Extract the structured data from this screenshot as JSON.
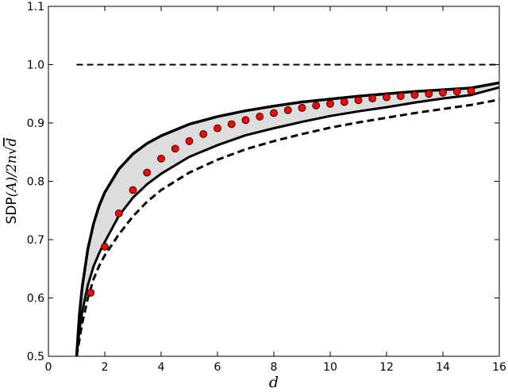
{
  "chart_data": {
    "type": "line",
    "title": "",
    "xlabel": "d",
    "ylabel": {
      "prefix": "SDP",
      "arg": "(A)",
      "mid": "/2n",
      "sqrt_arg": "d"
    },
    "xlim": [
      0,
      16
    ],
    "ylim": [
      0.5,
      1.1
    ],
    "xticks": [
      0,
      2,
      4,
      6,
      8,
      10,
      12,
      14,
      16
    ],
    "yticks": [
      0.5,
      0.6,
      0.7,
      0.8,
      0.9,
      1.0,
      1.1
    ],
    "xtick_labels": [
      "0",
      "2",
      "4",
      "6",
      "8",
      "10",
      "12",
      "14",
      "16"
    ],
    "ytick_labels": [
      "0.5",
      "0.6",
      "0.7",
      "0.8",
      "0.9",
      "1.0",
      "1.1"
    ],
    "grid": false,
    "legend": "none",
    "colors": {
      "band_fill": "#dddddd",
      "points": "#ff0000",
      "lines": "#000000"
    },
    "series": [
      {
        "style": "dashed",
        "x": [
          1,
          16
        ],
        "y": [
          1.0,
          1.0
        ]
      },
      {
        "style": "solid-thick",
        "x": [
          1.0,
          1.1,
          1.2,
          1.4,
          1.6,
          1.8,
          2.0,
          2.5,
          3.0,
          3.5,
          4.0,
          5.0,
          6.0,
          7.0,
          8.0,
          9.0,
          10.0,
          11.0,
          12.0,
          13.0,
          14.0,
          15.0,
          16.0
        ],
        "y": [
          0.5,
          0.572,
          0.619,
          0.684,
          0.727,
          0.758,
          0.781,
          0.821,
          0.847,
          0.865,
          0.878,
          0.898,
          0.911,
          0.921,
          0.929,
          0.936,
          0.941,
          0.946,
          0.95,
          0.954,
          0.957,
          0.96,
          0.969
        ]
      },
      {
        "style": "solid",
        "x": [
          1.0,
          1.1,
          1.2,
          1.4,
          1.6,
          1.8,
          2.0,
          2.5,
          3.0,
          3.5,
          4.0,
          5.0,
          6.0,
          7.0,
          8.0,
          9.0,
          10.0,
          11.0,
          12.0,
          13.0,
          14.0,
          15.0,
          16.0
        ],
        "y": [
          0.5,
          0.545,
          0.577,
          0.622,
          0.654,
          0.677,
          0.696,
          0.741,
          0.772,
          0.795,
          0.813,
          0.842,
          0.862,
          0.879,
          0.891,
          0.902,
          0.912,
          0.92,
          0.927,
          0.935,
          0.942,
          0.948,
          0.961
        ]
      },
      {
        "style": "dashed-thick",
        "x": [
          1.0,
          1.2,
          1.4,
          1.6,
          1.8,
          2.0,
          2.5,
          3.0,
          3.5,
          4.0,
          5.0,
          6.0,
          7.0,
          8.0,
          9.0,
          10.0,
          11.0,
          12.0,
          13.0,
          14.0,
          15.0,
          16.0
        ],
        "y": [
          0.5,
          0.557,
          0.6,
          0.632,
          0.655,
          0.673,
          0.709,
          0.74,
          0.765,
          0.785,
          0.815,
          0.837,
          0.855,
          0.869,
          0.881,
          0.892,
          0.901,
          0.909,
          0.917,
          0.924,
          0.931,
          0.94
        ]
      },
      {
        "style": "markers",
        "x": [
          1.5,
          2.0,
          2.5,
          3.0,
          3.5,
          4.0,
          4.5,
          5.0,
          5.5,
          6.0,
          6.5,
          7.0,
          7.5,
          8.0,
          8.5,
          9.0,
          9.5,
          10.0,
          10.5,
          11.0,
          11.5,
          12.0,
          12.5,
          13.0,
          13.5,
          14.0,
          14.5,
          15.0
        ],
        "y": [
          0.609,
          0.688,
          0.745,
          0.785,
          0.815,
          0.839,
          0.856,
          0.869,
          0.881,
          0.891,
          0.898,
          0.905,
          0.911,
          0.917,
          0.922,
          0.926,
          0.93,
          0.933,
          0.936,
          0.939,
          0.942,
          0.944,
          0.946,
          0.948,
          0.95,
          0.952,
          0.954,
          0.955
        ]
      }
    ]
  }
}
